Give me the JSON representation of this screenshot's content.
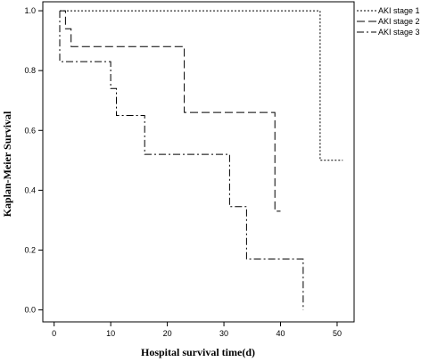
{
  "chart_data": {
    "type": "line",
    "xlabel": "Hospital survival time(d)",
    "ylabel": "Kaplan-Meier Survival",
    "xlim": [
      -2,
      53
    ],
    "ylim": [
      -0.04,
      1.03
    ],
    "x_ticks": [
      0,
      10,
      20,
      30,
      40,
      50
    ],
    "y_ticks": [
      0.0,
      0.2,
      0.4,
      0.6,
      0.8,
      1.0
    ],
    "y_tick_labels": [
      "0.0",
      "0.2",
      "0.4",
      "0.6",
      "0.8",
      "1.0"
    ],
    "legend_position": "top-right",
    "series": [
      {
        "name": "AKI stage 1",
        "style": "dotted",
        "points": [
          [
            1,
            1.0
          ],
          [
            47,
            1.0
          ],
          [
            47,
            0.5
          ],
          [
            51,
            0.5
          ]
        ]
      },
      {
        "name": "AKI stage 2",
        "style": "dashed",
        "points": [
          [
            1,
            1.0
          ],
          [
            2,
            1.0
          ],
          [
            2,
            0.94
          ],
          [
            3,
            0.94
          ],
          [
            3,
            0.88
          ],
          [
            23,
            0.88
          ],
          [
            23,
            0.66
          ],
          [
            39,
            0.66
          ],
          [
            39,
            0.33
          ],
          [
            40,
            0.33
          ]
        ]
      },
      {
        "name": "AKI stage 3",
        "style": "dashdot",
        "points": [
          [
            1,
            1.0
          ],
          [
            1,
            0.83
          ],
          [
            10,
            0.83
          ],
          [
            10,
            0.74
          ],
          [
            11,
            0.74
          ],
          [
            11,
            0.65
          ],
          [
            16,
            0.65
          ],
          [
            16,
            0.52
          ],
          [
            31,
            0.52
          ],
          [
            31,
            0.345
          ],
          [
            34,
            0.345
          ],
          [
            34,
            0.17
          ],
          [
            44,
            0.17
          ],
          [
            44,
            0.0
          ]
        ]
      }
    ]
  }
}
